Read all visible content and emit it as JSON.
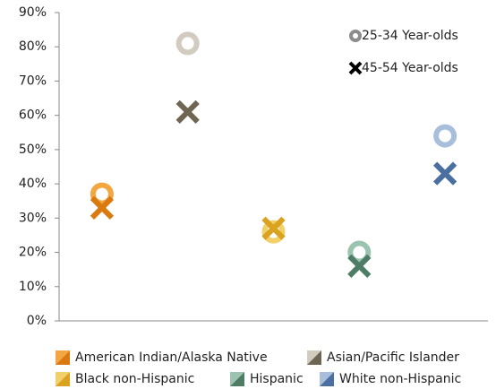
{
  "chart_data": {
    "type": "scatter",
    "categories": [
      "American Indian/Alaska Native",
      "Asian/Pacific Islander",
      "Black non-Hispanic",
      "Hispanic",
      "White non-Hispanic"
    ],
    "series": [
      {
        "name": "25-34 Year-olds",
        "marker": "circle",
        "color": "#8c8c8c",
        "colors": [
          "#f4a640",
          "#d2cbbf",
          "#f3cf6a",
          "#9cc3b0",
          "#a8bfdc"
        ],
        "values": [
          37,
          81,
          26,
          20,
          54
        ]
      },
      {
        "name": "45-54 Year-olds",
        "marker": "x",
        "color": "#000000",
        "colors": [
          "#d9790f",
          "#6e6553",
          "#d9a21f",
          "#4e7d66",
          "#4a6fa0"
        ],
        "values": [
          33,
          61,
          27,
          16,
          43
        ]
      }
    ],
    "ylim": [
      0,
      90
    ],
    "yticks": [
      {
        "value": 0,
        "label": "0%"
      },
      {
        "value": 10,
        "label": "10%"
      },
      {
        "value": 20,
        "label": "20%"
      },
      {
        "value": 30,
        "label": "30%"
      },
      {
        "value": 40,
        "label": "40%"
      },
      {
        "value": 50,
        "label": "50%"
      },
      {
        "value": 60,
        "label": "60%"
      },
      {
        "value": 70,
        "label": "70%"
      },
      {
        "value": 80,
        "label": "80%"
      },
      {
        "value": 90,
        "label": "90%"
      }
    ]
  }
}
